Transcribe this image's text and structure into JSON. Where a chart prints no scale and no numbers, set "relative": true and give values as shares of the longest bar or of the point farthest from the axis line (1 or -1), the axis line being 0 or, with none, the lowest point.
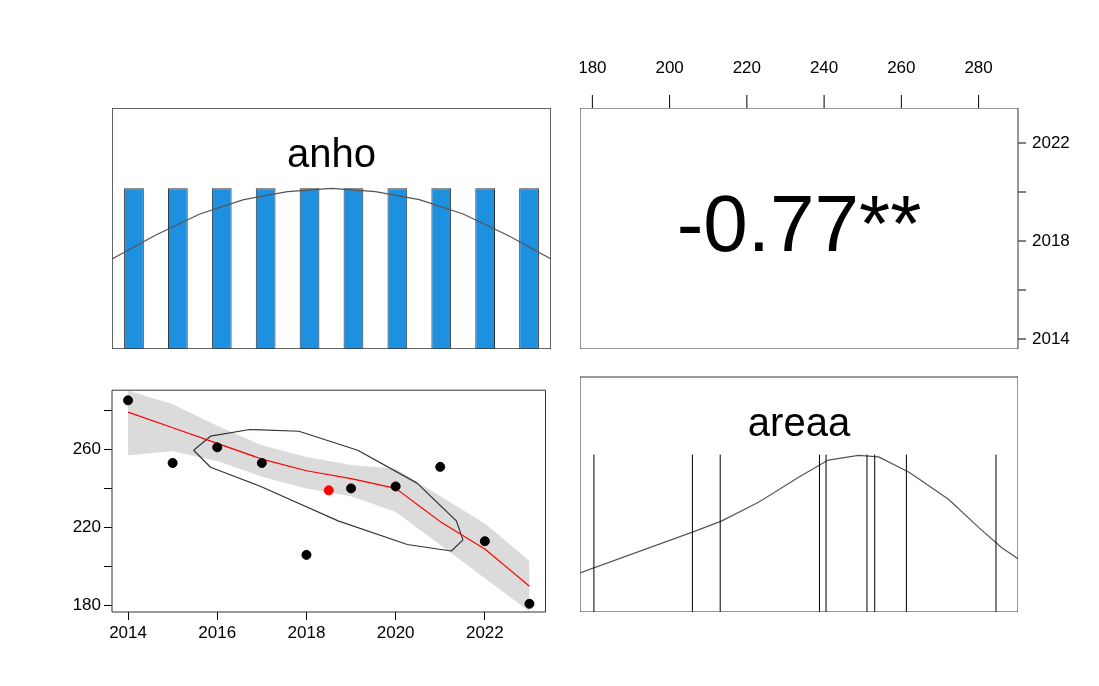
{
  "chart_data": [
    {
      "type": "bar",
      "title": "anho",
      "relative": true,
      "categories": [
        null,
        null,
        null,
        null,
        null,
        null,
        null,
        null,
        null,
        null
      ],
      "values": [
        1,
        1,
        1,
        1,
        1,
        1,
        1,
        1,
        1,
        1
      ],
      "color": "#1e90e0"
    },
    {
      "type": "line",
      "relative": true,
      "categories": [
        null,
        null,
        null,
        null,
        null,
        null,
        null,
        null,
        null,
        null,
        null
      ],
      "values": [
        0.56,
        0.71,
        0.84,
        0.93,
        0.98,
        1,
        0.98,
        0.93,
        0.84,
        0.71,
        0.56
      ],
      "color": "#555555"
    },
    {
      "type": "other",
      "annotations": [
        "-0.77**",
        "2022",
        "2018",
        "2014"
      ]
    },
    {
      "type": "scatter",
      "xlim": [
        2013.64,
        2023.36
      ],
      "xticks": [
        2014,
        2016,
        2018,
        2020,
        2022
      ],
      "ylim": [
        176.8,
        290.2
      ],
      "yticks": [
        180,
        {
          "value": 200,
          "label": null
        },
        220,
        {
          "value": 240,
          "label": null
        },
        260,
        {
          "value": 280,
          "label": null
        }
      ],
      "series": [
        {
          "type": "line",
          "color": "#ff0000",
          "marker": "none",
          "x": [
            2014,
            2015,
            2016,
            2017,
            2018,
            2019,
            2020,
            2021,
            2022,
            2023
          ],
          "values": [
            279,
            271,
            263,
            255,
            249,
            245,
            240,
            223,
            209,
            190
          ],
          "lower": [
            257,
            259,
            254,
            246,
            240,
            236,
            228,
            211,
            194,
            177
          ],
          "upper": [
            290,
            283,
            272,
            262,
            256,
            252,
            250,
            236,
            222,
            203
          ]
        },
        {
          "type": "line",
          "color": "#333333",
          "marker": "none",
          "x": [
            2015.47,
            2015.85,
            2016.73,
            2017.83,
            2019.15,
            2020.48,
            2021.36,
            2021.51
          ],
          "values": [
            259.5,
            266.7,
            270.1,
            269.2,
            259.5,
            242.7,
            223.4,
            213.7
          ]
        },
        {
          "type": "line",
          "color": "#333333",
          "marker": "none",
          "x": [
            2015.47,
            2015.85,
            2016.95,
            2018.71,
            2020.26,
            2021.25,
            2021.51
          ],
          "values": [
            259.5,
            250.8,
            241.2,
            223.4,
            211.3,
            208,
            213.7
          ]
        },
        {
          "type": "scatter",
          "color": "#000000",
          "marker": "circle",
          "x": [
            2014,
            2015,
            2016,
            2017,
            2018,
            2019,
            2020,
            2021,
            2022,
            2023
          ],
          "values": [
            285,
            253,
            261,
            253,
            206,
            240,
            241,
            251,
            213,
            181
          ]
        },
        {
          "type": "scatter",
          "color": "#ff0000",
          "marker": "circle",
          "x": [
            2018.5
          ],
          "values": [
            239
          ]
        }
      ]
    },
    {
      "type": "line",
      "title": "areaa",
      "relative": true,
      "xlim": [
        176.8,
        290.2
      ],
      "xticks": [
        180,
        200,
        220,
        240,
        260,
        280
      ],
      "series": [
        {
          "type": "line",
          "color": "#555555",
          "marker": "none",
          "x": [
            176.8,
            205.9,
            213.4,
            223,
            233.4,
            241.1,
            248.9,
            254.1,
            262.1,
            272.2,
            280,
            286,
            290.2
          ],
          "values": [
            0.25,
            0.51,
            0.58,
            0.7,
            0.86,
            0.97,
            1,
            0.99,
            0.89,
            0.72,
            0.54,
            0.41,
            0.34
          ]
        }
      ],
      "ref_lines": [
        {
          "axis": "x",
          "value": 180.4
        },
        {
          "axis": "x",
          "value": 205.9
        },
        {
          "axis": "x",
          "value": 213.1
        },
        {
          "axis": "x",
          "value": 238.8
        },
        {
          "axis": "x",
          "value": 240.5
        },
        {
          "axis": "x",
          "value": 251.1
        },
        {
          "axis": "x",
          "value": 253.1
        },
        {
          "axis": "x",
          "value": 261.3
        },
        {
          "axis": "x",
          "value": 284.5
        }
      ]
    }
  ]
}
